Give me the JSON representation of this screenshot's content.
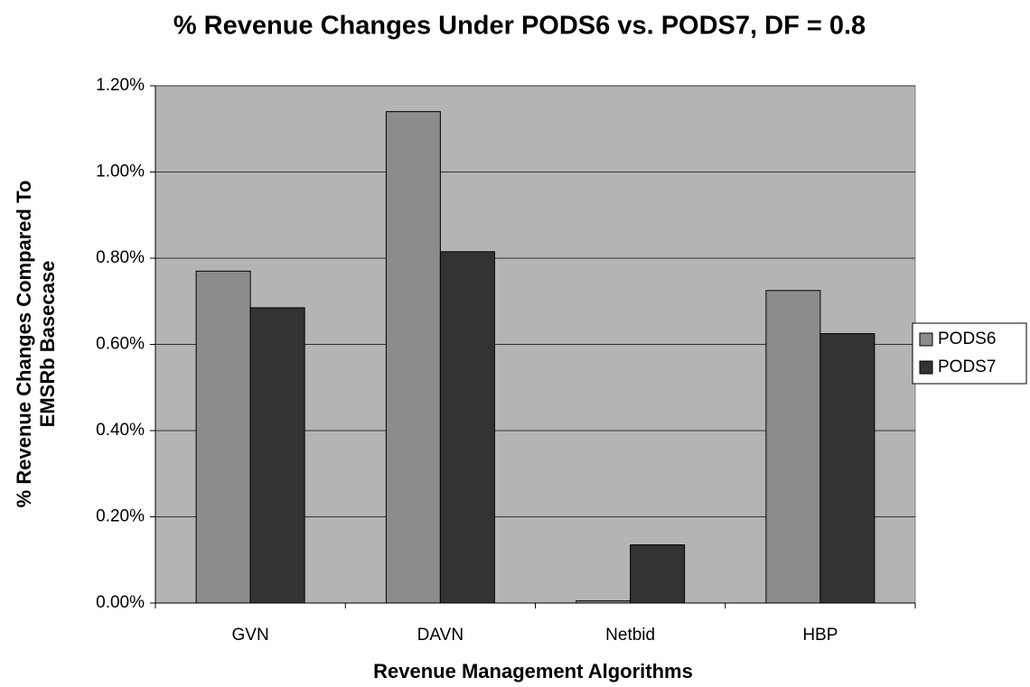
{
  "chart_data": {
    "type": "bar",
    "title": "% Revenue Changes Under PODS6 vs. PODS7, DF = 0.8",
    "x_label": "Revenue Management Algorithms",
    "y_label_lines": [
      "% Revenue Changes Compared To",
      "EMSRb Basecase"
    ],
    "categories": [
      "GVN",
      "DAVN",
      "Netbid",
      "HBP"
    ],
    "series": [
      {
        "name": "PODS6",
        "color": "#8c8c8c",
        "values": [
          0.77,
          1.14,
          0.005,
          0.725
        ]
      },
      {
        "name": "PODS7",
        "color": "#333333",
        "values": [
          0.685,
          0.815,
          0.135,
          0.625
        ]
      }
    ],
    "ylim": [
      0,
      1.2
    ],
    "yticks": [
      {
        "value": 0,
        "label": "0.00%"
      },
      {
        "value": 0.2,
        "label": "0.20%"
      },
      {
        "value": 0.4,
        "label": "0.40%"
      },
      {
        "value": 0.6,
        "label": "0.60%"
      },
      {
        "value": 0.8,
        "label": "0.80%"
      },
      {
        "value": 1.0,
        "label": "1.00%"
      },
      {
        "value": 1.2,
        "label": "1.20%"
      }
    ],
    "grid": true,
    "legend": "right",
    "plot_background": "#b4b4b4"
  }
}
